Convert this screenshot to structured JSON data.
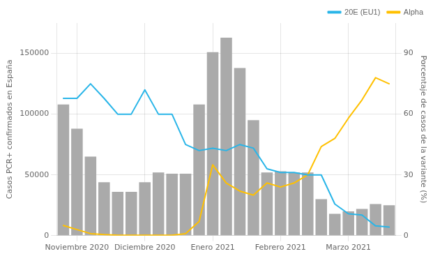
{
  "chart_data": {
    "type": "bar",
    "categories": [
      null,
      "Noviembre 2020",
      null,
      null,
      null,
      null,
      "Diciembre 2020",
      null,
      null,
      null,
      null,
      "Enero 2021",
      null,
      null,
      null,
      null,
      "Febrero 2021",
      null,
      null,
      null,
      null,
      "Marzo 2021",
      null,
      null,
      null
    ],
    "series": [
      {
        "type": "bar",
        "color": "#aaaaaa",
        "values": [
          108000,
          88000,
          65000,
          44000,
          36000,
          36000,
          44000,
          52000,
          51000,
          51000,
          108000,
          151000,
          163000,
          138000,
          95000,
          52000,
          53000,
          52000,
          52000,
          30000,
          18000,
          20000,
          22000,
          26000,
          25000
        ]
      },
      {
        "name": "20E (EU1)",
        "type": "line",
        "color": "#29b5e8",
        "values": [
          113000,
          113000,
          125000,
          113000,
          100000,
          100000,
          120000,
          100000,
          100000,
          75000,
          70000,
          72000,
          70000,
          75000,
          72000,
          55000,
          52000,
          52000,
          50000,
          50000,
          26000,
          18000,
          17000,
          8000,
          7000
        ]
      },
      {
        "name": "Alpha",
        "type": "line",
        "color": "#FFC000",
        "axis": "y2",
        "values": [
          5,
          3,
          1,
          0.5,
          0.2,
          0.2,
          0.2,
          0.2,
          0.2,
          1,
          7,
          35,
          26,
          22,
          20,
          26,
          24,
          26,
          30,
          44,
          48,
          58,
          67,
          78,
          75
        ]
      }
    ],
    "ylabel": "Casos PCR+ confirmados en España",
    "y2label": "Porcentaje de casos de la variante (%)",
    "ylim": [
      0,
      175000
    ],
    "yticks": [
      0,
      50000,
      100000,
      150000
    ],
    "y2lim": [
      0,
      105
    ],
    "y2ticks": [
      0,
      30,
      60,
      90
    ],
    "grid": true,
    "legend": "upper right"
  }
}
